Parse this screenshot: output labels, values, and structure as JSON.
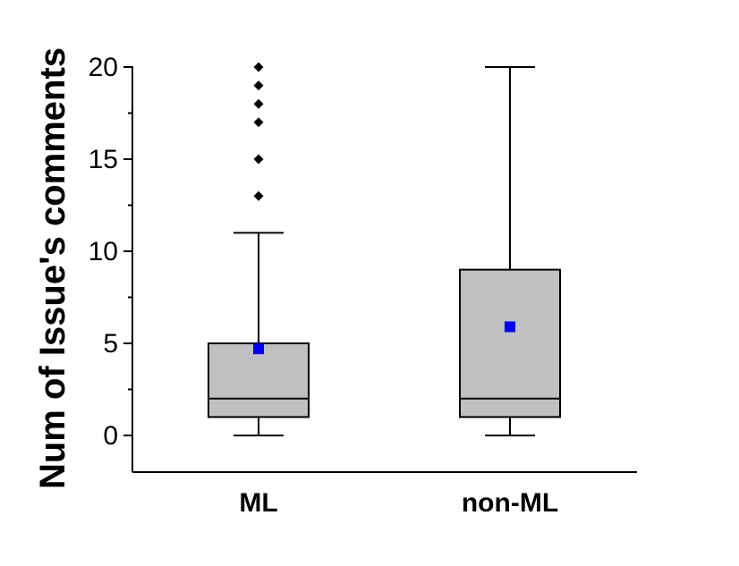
{
  "chart_data": {
    "type": "box",
    "ylabel": "Num of Issue's comments",
    "ylim": [
      -2,
      20
    ],
    "yticks": [
      0,
      5,
      10,
      15,
      20
    ],
    "categories": [
      "ML",
      "non-ML"
    ],
    "series": [
      {
        "category": "ML",
        "min": 0,
        "q1": 1,
        "median": 2,
        "q3": 5,
        "max": 11,
        "mean": 4.7,
        "outliers": [
          13,
          15,
          17,
          18,
          19,
          20
        ]
      },
      {
        "category": "non-ML",
        "min": 0,
        "q1": 1,
        "median": 2,
        "q3": 9,
        "max": 20,
        "mean": 5.9,
        "outliers": []
      }
    ],
    "box_fill": "#c0c0c0",
    "mean_color": "#0000ff",
    "outlier_color": "#000000"
  }
}
